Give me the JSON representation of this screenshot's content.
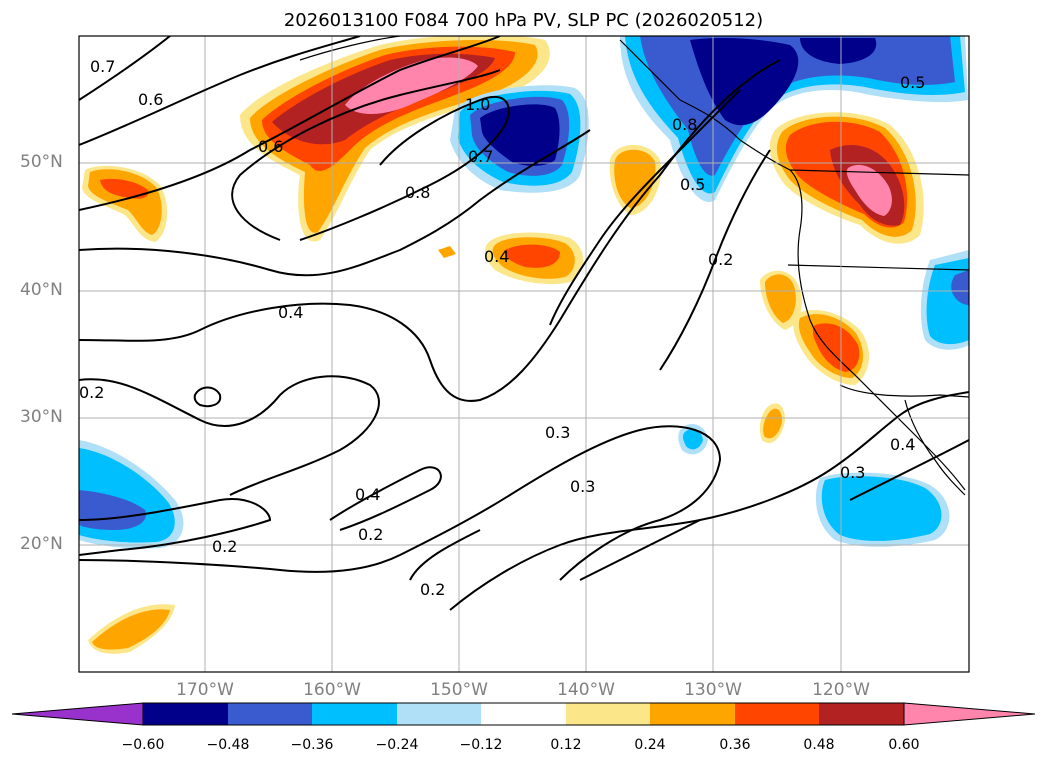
{
  "title": "2026013100 F084 700 hPa PV, SLP PC (2026020512)",
  "lat_labels": [
    "50°N",
    "40°N",
    "30°N",
    "20°N"
  ],
  "lon_labels": [
    "170°W",
    "160°W",
    "150°W",
    "140°W",
    "130°W",
    "120°W"
  ],
  "colorbar": {
    "tick_labels": [
      "−0.60",
      "−0.48",
      "−0.36",
      "−0.24",
      "−0.12",
      "0.12",
      "0.24",
      "0.36",
      "0.48",
      "0.60"
    ],
    "colors": [
      "#9932cc",
      "#00008b",
      "#3a5bd0",
      "#00bfff",
      "#afe0f8",
      "#ffffff",
      "#fce68a",
      "#ffa500",
      "#ff4500",
      "#b22222",
      "#ff85ad"
    ]
  },
  "contour_labels": [
    "0.7",
    "0.6",
    "0.6",
    "1.0",
    "0.7",
    "0.8",
    "0.4",
    "0.8",
    "0.5",
    "0.5",
    "0.2",
    "0.4",
    "0.2",
    "0.3",
    "0.3",
    "0.4",
    "0.2",
    "0.2",
    "0.2",
    "0.4",
    "0.3"
  ],
  "map": {
    "region": "North Pacific",
    "field_shaded": "700 hPa PV",
    "field_contoured": "SLP PC",
    "grid": true
  }
}
